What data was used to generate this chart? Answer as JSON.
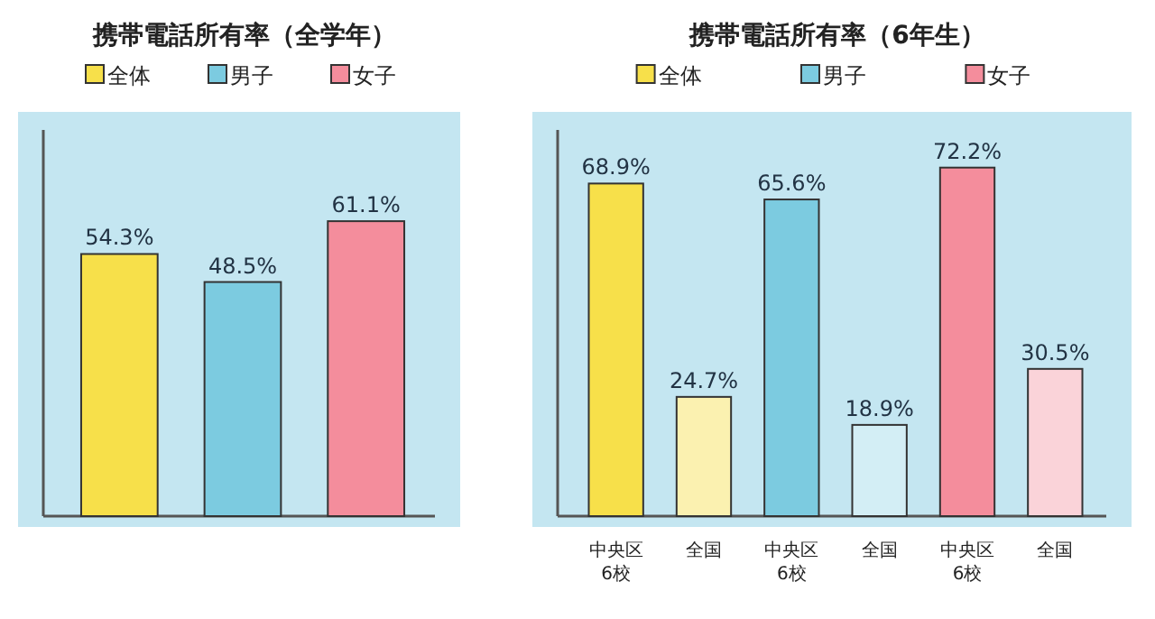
{
  "chart_data": [
    {
      "type": "bar",
      "title": "携帯電話所有率（全学年）",
      "categories": [
        null,
        null,
        null
      ],
      "stacked": true,
      "legend": "top",
      "series": [
        {
          "name": "全体",
          "color": "#f7e04a",
          "values": [
            54.3,
            null,
            null
          ],
          "value_labels": [
            "54.3%",
            null,
            null
          ]
        },
        {
          "name": "男子",
          "color": "#7ccbe0",
          "values": [
            null,
            48.5,
            null
          ],
          "value_labels": [
            null,
            "48.5%",
            null
          ]
        },
        {
          "name": "女子",
          "color": "#f48d9c",
          "values": [
            null,
            null,
            61.1
          ],
          "value_labels": [
            null,
            null,
            "61.1%"
          ]
        }
      ]
    },
    {
      "type": "bar",
      "title": "携帯電話所有率（6年生）",
      "categories": [
        "中央区\n6校",
        "全国",
        "中央区\n6校",
        "全国",
        "中央区\n6校",
        "全国"
      ],
      "stacked": true,
      "legend": "top",
      "series": [
        {
          "name": "全体",
          "color": "#f7e04a",
          "colors": [
            "#f7e04a",
            "#fbf1b0",
            null,
            null,
            null,
            null
          ],
          "values": [
            68.9,
            24.7,
            null,
            null,
            null,
            null
          ],
          "value_labels": [
            "68.9%",
            "24.7%",
            null,
            null,
            null,
            null
          ]
        },
        {
          "name": "男子",
          "color": "#7ccbe0",
          "colors": [
            null,
            null,
            "#7ccbe0",
            "#d3eef5",
            null,
            null
          ],
          "values": [
            null,
            null,
            65.6,
            18.9,
            null,
            null
          ],
          "value_labels": [
            null,
            null,
            "65.6%",
            "18.9%",
            null,
            null
          ]
        },
        {
          "name": "女子",
          "color": "#f48d9c",
          "colors": [
            null,
            null,
            null,
            null,
            "#f48d9c",
            "#fad3d9"
          ],
          "values": [
            null,
            null,
            null,
            null,
            72.2,
            30.5
          ],
          "value_labels": [
            null,
            null,
            null,
            null,
            "72.2%",
            "30.5%"
          ]
        }
      ]
    }
  ]
}
